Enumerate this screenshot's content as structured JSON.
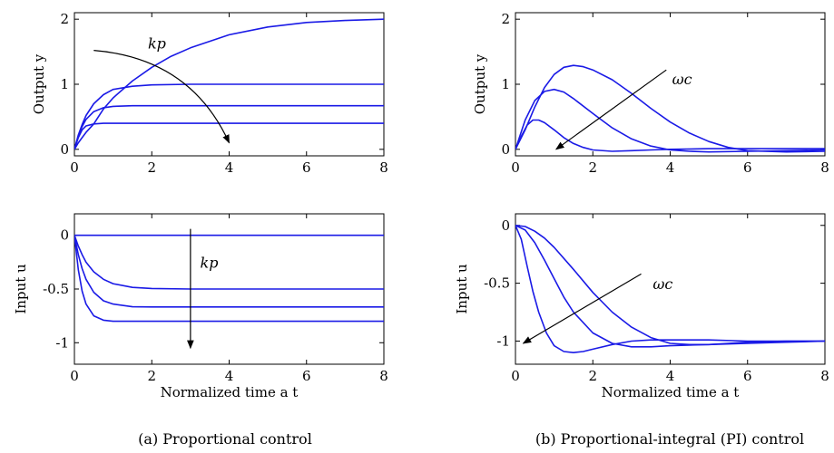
{
  "chart_data": [
    {
      "id": "tl",
      "type": "line",
      "xlabel": "",
      "ylabel": "Output y",
      "xlim": [
        0,
        8
      ],
      "ylim": [
        -0.1,
        2.1
      ],
      "xticks": [
        0,
        2,
        4,
        6,
        8
      ],
      "yticks": [
        0,
        1,
        2
      ],
      "grid": false,
      "color": "#1a1ae6",
      "series": [
        {
          "x": [
            0,
            0.1,
            0.2,
            0.3,
            0.5,
            0.75,
            1,
            1.5,
            2,
            2.5,
            3,
            4,
            5,
            6,
            7,
            8
          ],
          "y": [
            0,
            0.1,
            0.18,
            0.26,
            0.39,
            0.62,
            0.79,
            1.05,
            1.26,
            1.43,
            1.56,
            1.76,
            1.88,
            1.95,
            1.98,
            2.0
          ]
        },
        {
          "x": [
            0,
            0.1,
            0.2,
            0.3,
            0.5,
            0.75,
            1,
            1.5,
            2,
            3,
            4,
            6,
            8
          ],
          "y": [
            0,
            0.22,
            0.38,
            0.52,
            0.7,
            0.84,
            0.92,
            0.97,
            0.99,
            1.0,
            1.0,
            1.0,
            1.0
          ]
        },
        {
          "x": [
            0,
            0.1,
            0.2,
            0.3,
            0.5,
            0.75,
            1,
            1.5,
            2,
            3,
            4,
            6,
            8
          ],
          "y": [
            0,
            0.2,
            0.35,
            0.46,
            0.58,
            0.64,
            0.66,
            0.67,
            0.67,
            0.67,
            0.67,
            0.67,
            0.67
          ]
        },
        {
          "x": [
            0,
            0.1,
            0.2,
            0.3,
            0.5,
            0.75,
            1,
            1.5,
            2,
            3,
            4,
            6,
            8
          ],
          "y": [
            0,
            0.18,
            0.3,
            0.36,
            0.39,
            0.4,
            0.4,
            0.4,
            0.4,
            0.4,
            0.4,
            0.4,
            0.4
          ]
        }
      ],
      "annotations": [
        {
          "text": "kp",
          "at": [
            1.9,
            1.55
          ]
        }
      ],
      "arrow": {
        "from": [
          0.5,
          1.52
        ],
        "ctrl": [
          3.0,
          1.4
        ],
        "to": [
          4.0,
          0.1
        ]
      }
    },
    {
      "id": "tr",
      "type": "line",
      "xlabel": "",
      "ylabel": "Output y",
      "xlim": [
        0,
        8
      ],
      "ylim": [
        -0.1,
        2.1
      ],
      "xticks": [
        0,
        2,
        4,
        6,
        8
      ],
      "yticks": [
        0,
        1,
        2
      ],
      "grid": false,
      "color": "#1a1ae6",
      "series": [
        {
          "x": [
            0,
            0.25,
            0.5,
            0.75,
            1,
            1.25,
            1.5,
            1.75,
            2,
            2.5,
            3,
            3.5,
            4,
            4.5,
            5,
            5.5,
            6,
            7,
            8
          ],
          "y": [
            0,
            0.3,
            0.65,
            0.95,
            1.15,
            1.26,
            1.29,
            1.27,
            1.22,
            1.07,
            0.86,
            0.63,
            0.42,
            0.25,
            0.12,
            0.03,
            -0.02,
            -0.04,
            -0.03
          ]
        },
        {
          "x": [
            0,
            0.25,
            0.5,
            0.75,
            1,
            1.25,
            1.5,
            2,
            2.5,
            3,
            3.5,
            4,
            4.5,
            5,
            6,
            7,
            8
          ],
          "y": [
            0,
            0.45,
            0.75,
            0.89,
            0.92,
            0.88,
            0.78,
            0.55,
            0.33,
            0.16,
            0.05,
            -0.01,
            -0.03,
            -0.04,
            -0.03,
            -0.02,
            -0.01
          ]
        },
        {
          "x": [
            0,
            0.15,
            0.3,
            0.45,
            0.6,
            0.75,
            1,
            1.25,
            1.5,
            1.75,
            2,
            2.5,
            3,
            3.5,
            4,
            5,
            6,
            8
          ],
          "y": [
            0,
            0.2,
            0.37,
            0.45,
            0.45,
            0.41,
            0.3,
            0.18,
            0.09,
            0.03,
            -0.01,
            -0.03,
            -0.02,
            -0.01,
            0.0,
            0.01,
            0.01,
            0.01
          ]
        }
      ],
      "annotations": [
        {
          "text": "ωc",
          "at": [
            4.05,
            1.0
          ]
        }
      ],
      "arrow": {
        "from": [
          3.9,
          1.22
        ],
        "to": [
          1.05,
          0.0
        ]
      }
    },
    {
      "id": "bl",
      "type": "line",
      "xlabel": "Normalized time a t",
      "ylabel": "Input u",
      "xlim": [
        0,
        8
      ],
      "ylim": [
        -1.2,
        0.2
      ],
      "xticks": [
        0,
        2,
        4,
        6,
        8
      ],
      "yticks": [
        0,
        -0.5,
        -1
      ],
      "yticklabels": [
        "0",
        "-0.5",
        "-1"
      ],
      "grid": false,
      "color": "#1a1ae6",
      "series": [
        {
          "x": [
            0,
            8
          ],
          "y": [
            0,
            0
          ]
        },
        {
          "x": [
            0,
            0.1,
            0.2,
            0.3,
            0.5,
            0.75,
            1,
            1.5,
            2,
            3,
            4,
            6,
            8
          ],
          "y": [
            0,
            -0.1,
            -0.18,
            -0.25,
            -0.34,
            -0.41,
            -0.45,
            -0.485,
            -0.495,
            -0.5,
            -0.5,
            -0.5,
            -0.5
          ]
        },
        {
          "x": [
            0,
            0.1,
            0.2,
            0.3,
            0.5,
            0.75,
            1,
            1.5,
            2,
            3,
            4,
            6,
            8
          ],
          "y": [
            0,
            -0.18,
            -0.31,
            -0.41,
            -0.53,
            -0.61,
            -0.64,
            -0.665,
            -0.667,
            -0.667,
            -0.667,
            -0.667,
            -0.667
          ]
        },
        {
          "x": [
            0,
            0.1,
            0.2,
            0.3,
            0.5,
            0.75,
            1,
            1.5,
            2,
            3,
            4,
            6,
            8
          ],
          "y": [
            0,
            -0.32,
            -0.52,
            -0.64,
            -0.75,
            -0.79,
            -0.8,
            -0.8,
            -0.8,
            -0.8,
            -0.8,
            -0.8,
            -0.8
          ]
        }
      ],
      "annotations": [
        {
          "text": "kp",
          "at": [
            3.25,
            -0.3
          ]
        }
      ],
      "arrow": {
        "from": [
          3.0,
          0.06
        ],
        "to": [
          3.0,
          -1.05
        ]
      }
    },
    {
      "id": "br",
      "type": "line",
      "xlabel": "Normalized time a t",
      "ylabel": "Input u",
      "xlim": [
        0,
        8
      ],
      "ylim": [
        -1.2,
        0.1
      ],
      "xticks": [
        0,
        2,
        4,
        6,
        8
      ],
      "yticks": [
        0,
        -0.5,
        -1
      ],
      "yticklabels": [
        "0",
        "-0.5",
        "-1"
      ],
      "grid": false,
      "color": "#1a1ae6",
      "series": [
        {
          "x": [
            0,
            0.25,
            0.5,
            0.75,
            1,
            1.5,
            2,
            2.5,
            3,
            3.5,
            4,
            4.5,
            5,
            5.5,
            6,
            7,
            8
          ],
          "y": [
            0,
            -0.01,
            -0.05,
            -0.11,
            -0.19,
            -0.38,
            -0.58,
            -0.75,
            -0.88,
            -0.97,
            -1.02,
            -1.03,
            -1.03,
            -1.02,
            -1.01,
            -1.0,
            -1.0
          ]
        },
        {
          "x": [
            0,
            0.25,
            0.5,
            0.75,
            1,
            1.25,
            1.5,
            2,
            2.5,
            3,
            3.5,
            4,
            5,
            6,
            7,
            8
          ],
          "y": [
            0,
            -0.04,
            -0.15,
            -0.3,
            -0.46,
            -0.62,
            -0.75,
            -0.93,
            -1.02,
            -1.05,
            -1.05,
            -1.04,
            -1.03,
            -1.02,
            -1.01,
            -1.0
          ]
        },
        {
          "x": [
            0,
            0.15,
            0.3,
            0.45,
            0.6,
            0.8,
            1,
            1.25,
            1.5,
            1.75,
            2,
            2.5,
            3,
            3.5,
            4,
            5,
            6,
            8
          ],
          "y": [
            0,
            -0.12,
            -0.35,
            -0.57,
            -0.75,
            -0.93,
            -1.04,
            -1.09,
            -1.1,
            -1.09,
            -1.07,
            -1.03,
            -1.0,
            -0.99,
            -0.99,
            -0.99,
            -1.0,
            -1.0
          ]
        }
      ],
      "annotations": [
        {
          "text": "ωc",
          "at": [
            3.55,
            -0.55
          ]
        }
      ],
      "arrow": {
        "from": [
          3.25,
          -0.42
        ],
        "to": [
          0.2,
          -1.02
        ]
      }
    }
  ],
  "captions": {
    "left": "(a) Proportional control",
    "right": "(b) Proportional-integral (PI) control"
  }
}
